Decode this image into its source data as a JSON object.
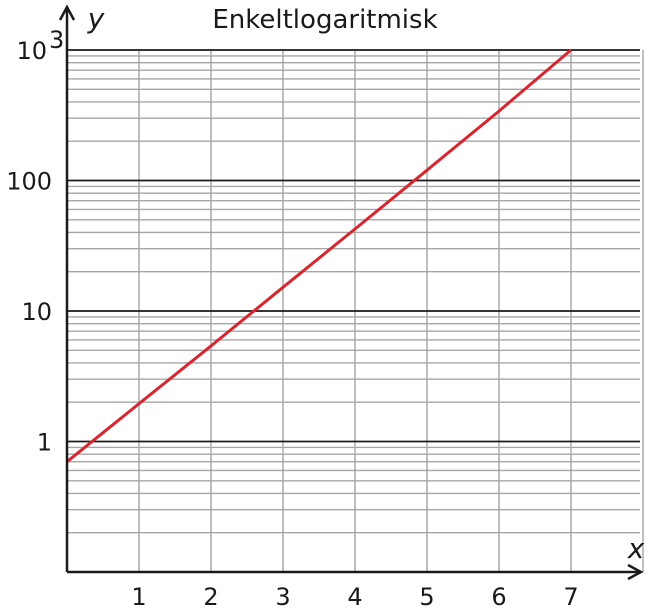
{
  "chart_data": {
    "type": "line",
    "title": "Enkeltlogaritmisk",
    "xlabel": "x",
    "ylabel": "y",
    "yscale": "log",
    "xlim": [
      0,
      8
    ],
    "ylim": [
      0.1,
      1000
    ],
    "grid": true,
    "x_ticks": [
      {
        "value": 1,
        "label": "1"
      },
      {
        "value": 2,
        "label": "2"
      },
      {
        "value": 3,
        "label": "3"
      },
      {
        "value": 4,
        "label": "4"
      },
      {
        "value": 5,
        "label": "5"
      },
      {
        "value": 6,
        "label": "6"
      },
      {
        "value": 7,
        "label": "7"
      }
    ],
    "y_ticks": [
      {
        "value": 1,
        "label": "1"
      },
      {
        "value": 10,
        "label": "10"
      },
      {
        "value": 100,
        "label": "100"
      },
      {
        "value": 1000,
        "label": "10",
        "sup": "3"
      }
    ],
    "series": [
      {
        "color": "#d7262e",
        "x": [
          0,
          1,
          2,
          3,
          4,
          5,
          6,
          7
        ],
        "y": [
          0.7,
          1.95,
          5.4,
          15.2,
          42.5,
          120,
          340,
          1000
        ]
      }
    ],
    "colors": {
      "grid_major": "#1a1a1a",
      "grid_minor": "#a6a6a6",
      "axis": "#1a1a1a"
    }
  }
}
